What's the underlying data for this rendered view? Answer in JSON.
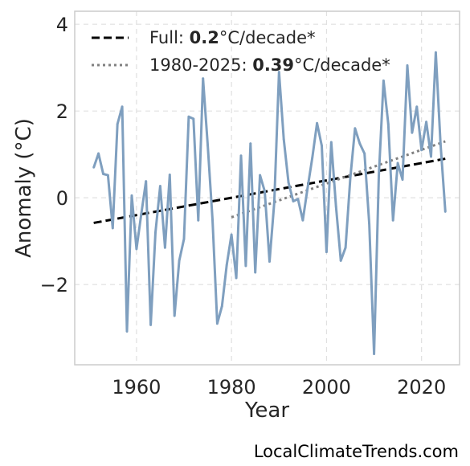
{
  "source_label": "LocalClimateTrends.com",
  "chart_data": {
    "type": "line",
    "title": "",
    "xlabel": "Year",
    "ylabel": "Anomaly (°C)",
    "xlim": [
      1947,
      2028
    ],
    "ylim": [
      -3.85,
      4.3
    ],
    "x_ticks": [
      1960,
      1980,
      2000,
      2020
    ],
    "x_tick_labels": [
      "1960",
      "1980",
      "2000",
      "2020"
    ],
    "y_ticks": [
      4,
      2,
      0,
      -2
    ],
    "y_tick_labels": [
      "4",
      "2",
      "0",
      "−2"
    ],
    "grid": true,
    "legend_position": "top-left",
    "colors": {
      "series": "#7f9fbf",
      "trend_full": "#000000",
      "trend_recent": "#808080",
      "grid": "#e0e0e0",
      "frame": "#cccccc"
    },
    "series": [
      {
        "years": [
          1951,
          1952,
          1953,
          1954,
          1955,
          1956,
          1957,
          1958,
          1959,
          1960,
          1961,
          1962,
          1963,
          1964,
          1965,
          1966,
          1967,
          1968,
          1969,
          1970,
          1971,
          1972,
          1973,
          1974,
          1975,
          1976,
          1977,
          1978,
          1979,
          1980,
          1981,
          1982,
          1983,
          1984,
          1985,
          1986,
          1987,
          1988,
          1989,
          1990,
          1991,
          1992,
          1993,
          1994,
          1995,
          1996,
          1997,
          1998,
          1999,
          2000,
          2001,
          2002,
          2003,
          2004,
          2005,
          2006,
          2007,
          2008,
          2009,
          2010,
          2011,
          2012,
          2013,
          2014,
          2015,
          2016,
          2017,
          2018,
          2019,
          2020,
          2021,
          2022,
          2023,
          2024,
          2025
        ],
        "values": [
          0.7,
          1.02,
          0.55,
          0.52,
          -0.7,
          1.7,
          2.1,
          -3.08,
          0.05,
          -1.18,
          -0.38,
          0.38,
          -2.93,
          -0.8,
          0.27,
          -1.15,
          0.53,
          -2.72,
          -1.45,
          -0.95,
          1.87,
          1.82,
          -0.52,
          2.75,
          1.2,
          -0.5,
          -2.9,
          -2.5,
          -1.55,
          -0.85,
          -1.85,
          0.97,
          -1.57,
          1.25,
          -1.72,
          0.52,
          0.15,
          -1.47,
          -0.1,
          2.9,
          1.35,
          0.35,
          -0.08,
          -0.03,
          -0.52,
          0.22,
          0.92,
          1.72,
          1.2,
          -1.25,
          1.28,
          -0.2,
          -1.45,
          -1.15,
          0.45,
          1.6,
          1.25,
          1.02,
          -0.6,
          -3.6,
          0.5,
          2.7,
          1.7,
          -0.52,
          0.8,
          0.42,
          3.05,
          1.5,
          2.1,
          1.1,
          1.75,
          0.95,
          3.35,
          1.25,
          -0.32
        ]
      }
    ],
    "trend_full": {
      "label": "Full: ",
      "rate": "0.2",
      "unit": "°C/decade*",
      "start": [
        1951,
        -0.58
      ],
      "end": [
        2025,
        0.9
      ]
    },
    "trend_recent": {
      "label": "1980-2025: ",
      "rate": "0.39",
      "unit": "°C/decade*",
      "start": [
        1980,
        -0.45
      ],
      "end": [
        2025,
        1.3
      ]
    }
  }
}
